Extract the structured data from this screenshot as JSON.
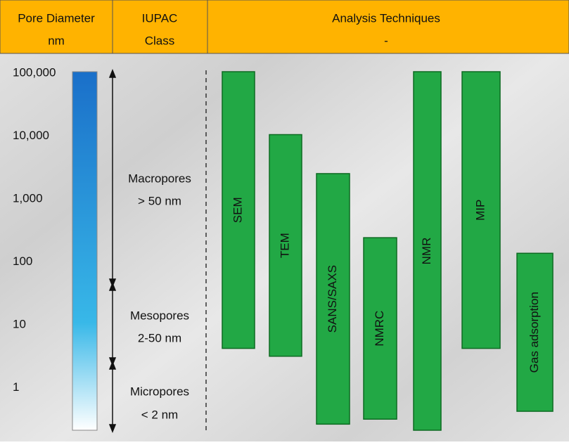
{
  "header": {
    "columns": [
      [
        "Pore Diameter",
        "nm"
      ],
      [
        "IUPAC",
        "Class"
      ],
      [
        "Analysis Techniques",
        "-"
      ]
    ]
  },
  "iupac_classes": [
    {
      "name": "Macropores",
      "range": "> 50 nm"
    },
    {
      "name": "Mesopores",
      "range": "2-50 nm"
    },
    {
      "name": "Micropores",
      "range": "< 2 nm"
    }
  ],
  "chart_data": {
    "type": "range-bar",
    "log_scale": true,
    "ylim": [
      0.2,
      100000
    ],
    "yticks": [
      1,
      10,
      100,
      {
        "value": 1000,
        "label": "1,000"
      },
      {
        "value": 10000,
        "label": "10,000"
      },
      {
        "value": 100000,
        "label": "100,000"
      }
    ],
    "categories": [
      "SEM",
      "TEM",
      "SANS/SAXS",
      "NMRC",
      "NMR",
      "MIP",
      "Gas adsorption"
    ],
    "low": [
      4,
      3,
      0.25,
      0.3,
      0.2,
      4,
      0.4
    ],
    "high": [
      100000,
      10000,
      2400,
      230,
      100000,
      100000,
      130
    ],
    "color": "#22a845"
  }
}
